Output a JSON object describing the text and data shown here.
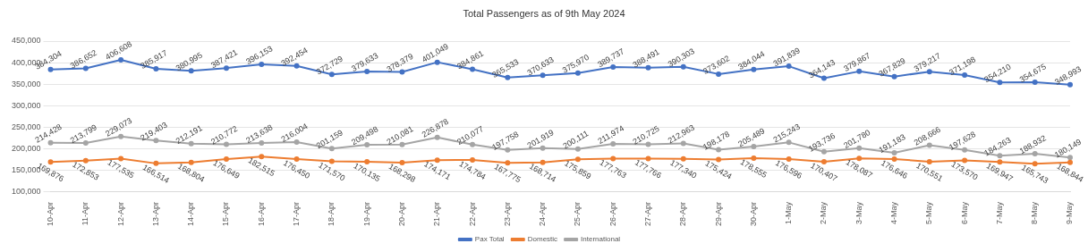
{
  "chart_data": {
    "type": "line",
    "title": "Total Passengers as of 9th May 2024",
    "categories": [
      "10-Apr",
      "11-Apr",
      "12-Apr",
      "13-Apr",
      "14-Apr",
      "15-Apr",
      "16-Apr",
      "17-Apr",
      "18-Apr",
      "19-Apr",
      "20-Apr",
      "21-Apr",
      "22-Apr",
      "23-Apr",
      "24-Apr",
      "25-Apr",
      "26-Apr",
      "27-Apr",
      "28-Apr",
      "29-Apr",
      "30-Apr",
      "1-May",
      "2-May",
      "3-May",
      "4-May",
      "5-May",
      "6-May",
      "7-May",
      "8-May",
      "9-May"
    ],
    "series": [
      {
        "name": "Pax Total",
        "color": "#4472c4",
        "values": [
          384304,
          386652,
          406608,
          385917,
          380995,
          387421,
          396153,
          392454,
          372729,
          379633,
          378379,
          401049,
          384861,
          365533,
          370633,
          375970,
          389737,
          388491,
          390303,
          373602,
          384044,
          391839,
          364143,
          379867,
          367829,
          379217,
          371198,
          354210,
          354675,
          348993
        ],
        "value_labels": [
          "384,304",
          "386,652",
          "406,608",
          "385,917",
          "380,995",
          "387,421",
          "396,153",
          "392,454",
          "372,729",
          "379,633",
          "378,379",
          "401,049",
          "384,861",
          "365,533",
          "370,633",
          "375,970",
          "389,737",
          "388,491",
          "390,303",
          "373,602",
          "384,044",
          "391,839",
          "364,143",
          "379,867",
          "367,829",
          "379,217",
          "371,198",
          "354,210",
          "354,675",
          "348,993"
        ]
      },
      {
        "name": "Domestic",
        "color": "#ed7d31",
        "values": [
          169876,
          172853,
          177535,
          166514,
          168804,
          176649,
          182515,
          176450,
          171570,
          170135,
          168298,
          174171,
          174784,
          167775,
          168714,
          175859,
          177763,
          177766,
          177340,
          175424,
          178555,
          176596,
          170407,
          178087,
          176646,
          170551,
          173570,
          169947,
          165743,
          168844
        ],
        "value_labels": [
          "169,876",
          "172,853",
          "177,535",
          "166,514",
          "168,804",
          "176,649",
          "182,515",
          "176,450",
          "171,570",
          "170,135",
          "168,298",
          "174,171",
          "174,784",
          "167,775",
          "168,714",
          "175,859",
          "177,763",
          "177,766",
          "177,340",
          "175,424",
          "178,555",
          "176,596",
          "170,407",
          "178,087",
          "176,646",
          "170,551",
          "173,570",
          "169,947",
          "165,743",
          "168,844"
        ]
      },
      {
        "name": "International",
        "color": "#a5a5a5",
        "values": [
          214428,
          213799,
          229073,
          219403,
          212191,
          210772,
          213638,
          216004,
          201159,
          209498,
          210081,
          226878,
          210077,
          197758,
          201919,
          200111,
          211974,
          210725,
          212963,
          198178,
          205489,
          215243,
          193736,
          201780,
          191183,
          208666,
          197628,
          184263,
          188932,
          180149
        ],
        "value_labels": [
          "214,428",
          "213,799",
          "229,073",
          "219,403",
          "212,191",
          "210,772",
          "213,638",
          "216,004",
          "201,159",
          "209,498",
          "210,081",
          "226,878",
          "210,077",
          "197,758",
          "201,919",
          "200,111",
          "211,974",
          "210,725",
          "212,963",
          "198,178",
          "205,489",
          "215,243",
          "193,736",
          "201,780",
          "191,183",
          "208,666",
          "197,628",
          "184,263",
          "188,932",
          "180,149"
        ]
      }
    ],
    "ylim": [
      100000,
      450000
    ],
    "yticks": [
      {
        "value": 100000,
        "label": "100,000"
      },
      {
        "value": 150000,
        "label": "150,000"
      },
      {
        "value": 200000,
        "label": "200,000"
      },
      {
        "value": 250000,
        "label": "250,000"
      },
      {
        "value": 300000,
        "label": "300,000"
      },
      {
        "value": 350000,
        "label": "350,000"
      },
      {
        "value": 400000,
        "label": "400,000"
      },
      {
        "value": 450000,
        "label": "450,000"
      }
    ],
    "grid": "y",
    "legend": "bottom",
    "marker": "circle",
    "line_style": "solid"
  }
}
